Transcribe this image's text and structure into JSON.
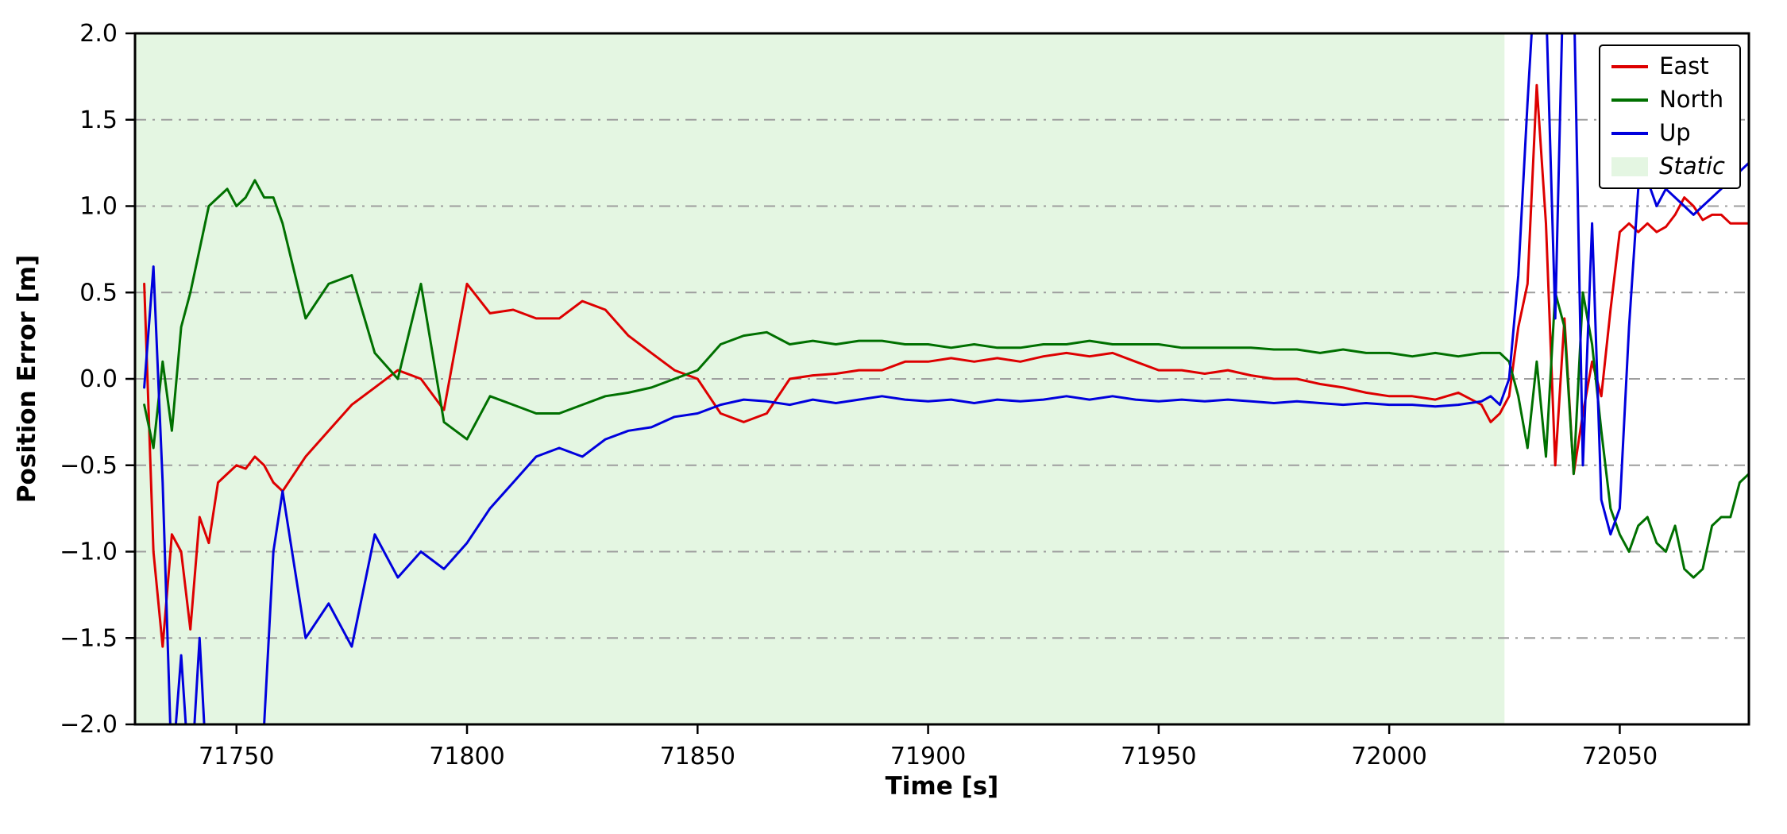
{
  "figure": {
    "title": ""
  },
  "legend": {
    "entries": [
      {
        "label": "East",
        "color": "#dd0000",
        "type": "line",
        "italic": false
      },
      {
        "label": "North",
        "color": "#007000",
        "type": "line",
        "italic": false
      },
      {
        "label": "Up",
        "color": "#0000dd",
        "type": "line",
        "italic": false
      },
      {
        "label": "Static",
        "color": "#e4f6e2",
        "type": "patch",
        "italic": true
      }
    ]
  },
  "chart_data": {
    "type": "line",
    "title": "",
    "xlabel": "Time [s]",
    "ylabel": "Position Error [m]",
    "xlim": [
      71728,
      72078
    ],
    "ylim": [
      -2.0,
      2.0
    ],
    "xticks": [
      71750,
      71800,
      71850,
      71900,
      71950,
      72000,
      72050
    ],
    "xtick_labels": [
      "71750",
      "71800",
      "71850",
      "71900",
      "71950",
      "72000",
      "72050"
    ],
    "yticks": [
      -2.0,
      -1.5,
      -1.0,
      -0.5,
      0.0,
      0.5,
      1.0,
      1.5,
      2.0
    ],
    "ytick_labels": [
      "−2.0",
      "−1.5",
      "−1.0",
      "−0.5",
      "0.0",
      "0.5",
      "1.0",
      "1.5",
      "2.0"
    ],
    "grid": {
      "axis": "y",
      "style": "dash-dot",
      "color": "#9e9e9e"
    },
    "legend_position": "upper right",
    "static_region": {
      "x0": 71728,
      "x1": 72025,
      "color": "#e4f6e2",
      "label": "Static"
    },
    "x": [
      71730,
      71732,
      71734,
      71736,
      71738,
      71740,
      71742,
      71744,
      71746,
      71748,
      71750,
      71752,
      71754,
      71756,
      71758,
      71760,
      71765,
      71770,
      71775,
      71780,
      71785,
      71790,
      71795,
      71800,
      71805,
      71810,
      71815,
      71820,
      71825,
      71830,
      71835,
      71840,
      71845,
      71850,
      71855,
      71860,
      71865,
      71870,
      71875,
      71880,
      71885,
      71890,
      71895,
      71900,
      71905,
      71910,
      71915,
      71920,
      71925,
      71930,
      71935,
      71940,
      71945,
      71950,
      71955,
      71960,
      71965,
      71970,
      71975,
      71980,
      71985,
      71990,
      71995,
      72000,
      72005,
      72010,
      72015,
      72020,
      72022,
      72024,
      72026,
      72028,
      72030,
      72032,
      72034,
      72036,
      72038,
      72040,
      72042,
      72044,
      72046,
      72048,
      72050,
      72052,
      72054,
      72056,
      72058,
      72060,
      72062,
      72064,
      72066,
      72068,
      72070,
      72072,
      72074,
      72076,
      72078
    ],
    "series": [
      {
        "name": "East",
        "color": "#dd0000",
        "values": [
          0.55,
          -1.0,
          -1.55,
          -0.9,
          -1.0,
          -1.45,
          -0.8,
          -0.95,
          -0.6,
          -0.55,
          -0.5,
          -0.52,
          -0.45,
          -0.5,
          -0.6,
          -0.65,
          -0.45,
          -0.3,
          -0.15,
          -0.05,
          0.05,
          0.0,
          -0.18,
          0.55,
          0.38,
          0.4,
          0.35,
          0.35,
          0.45,
          0.4,
          0.25,
          0.15,
          0.05,
          0.0,
          -0.2,
          -0.25,
          -0.2,
          0.0,
          0.02,
          0.03,
          0.05,
          0.05,
          0.1,
          0.1,
          0.12,
          0.1,
          0.12,
          0.1,
          0.13,
          0.15,
          0.13,
          0.15,
          0.1,
          0.05,
          0.05,
          0.03,
          0.05,
          0.02,
          0.0,
          0.0,
          -0.03,
          -0.05,
          -0.08,
          -0.1,
          -0.1,
          -0.12,
          -0.08,
          -0.15,
          -0.25,
          -0.2,
          -0.1,
          0.3,
          0.55,
          1.7,
          0.9,
          -0.5,
          0.35,
          -0.55,
          -0.2,
          0.1,
          -0.1,
          0.4,
          0.85,
          0.9,
          0.85,
          0.9,
          0.85,
          0.88,
          0.95,
          1.05,
          1.0,
          0.92,
          0.95,
          0.95,
          0.9,
          0.9,
          0.9
        ]
      },
      {
        "name": "North",
        "color": "#007000",
        "values": [
          -0.15,
          -0.4,
          0.1,
          -0.3,
          0.3,
          0.5,
          0.75,
          1.0,
          1.05,
          1.1,
          1.0,
          1.05,
          1.15,
          1.05,
          1.05,
          0.9,
          0.35,
          0.55,
          0.6,
          0.15,
          0.0,
          0.55,
          -0.25,
          -0.35,
          -0.1,
          -0.15,
          -0.2,
          -0.2,
          -0.15,
          -0.1,
          -0.08,
          -0.05,
          0.0,
          0.05,
          0.2,
          0.25,
          0.27,
          0.2,
          0.22,
          0.2,
          0.22,
          0.22,
          0.2,
          0.2,
          0.18,
          0.2,
          0.18,
          0.18,
          0.2,
          0.2,
          0.22,
          0.2,
          0.2,
          0.2,
          0.18,
          0.18,
          0.18,
          0.18,
          0.17,
          0.17,
          0.15,
          0.17,
          0.15,
          0.15,
          0.13,
          0.15,
          0.13,
          0.15,
          0.15,
          0.15,
          0.1,
          -0.1,
          -0.4,
          0.1,
          -0.45,
          0.5,
          0.3,
          -0.55,
          0.5,
          0.2,
          -0.3,
          -0.75,
          -0.9,
          -1.0,
          -0.85,
          -0.8,
          -0.95,
          -1.0,
          -0.85,
          -1.1,
          -1.15,
          -1.1,
          -0.85,
          -0.8,
          -0.8,
          -0.6,
          -0.55
        ]
      },
      {
        "name": "Up",
        "color": "#0000dd",
        "values": [
          -0.05,
          0.65,
          -0.6,
          -2.3,
          -1.6,
          -2.4,
          -1.5,
          -2.5,
          -2.2,
          -2.6,
          -2.6,
          -2.4,
          -2.6,
          -2.0,
          -1.0,
          -0.65,
          -1.5,
          -1.3,
          -1.55,
          -0.9,
          -1.15,
          -1.0,
          -1.1,
          -0.95,
          -0.75,
          -0.6,
          -0.45,
          -0.4,
          -0.45,
          -0.35,
          -0.3,
          -0.28,
          -0.22,
          -0.2,
          -0.15,
          -0.12,
          -0.13,
          -0.15,
          -0.12,
          -0.14,
          -0.12,
          -0.1,
          -0.12,
          -0.13,
          -0.12,
          -0.14,
          -0.12,
          -0.13,
          -0.12,
          -0.1,
          -0.12,
          -0.1,
          -0.12,
          -0.13,
          -0.12,
          -0.13,
          -0.12,
          -0.13,
          -0.14,
          -0.13,
          -0.14,
          -0.15,
          -0.14,
          -0.15,
          -0.15,
          -0.16,
          -0.15,
          -0.13,
          -0.1,
          -0.15,
          0.0,
          0.6,
          1.6,
          2.5,
          2.2,
          0.35,
          2.6,
          2.3,
          -0.5,
          0.9,
          -0.7,
          -0.9,
          -0.75,
          0.3,
          1.1,
          1.15,
          1.0,
          1.1,
          1.05,
          1.0,
          0.95,
          1.0,
          1.05,
          1.1,
          1.15,
          1.2,
          1.25
        ]
      }
    ]
  }
}
